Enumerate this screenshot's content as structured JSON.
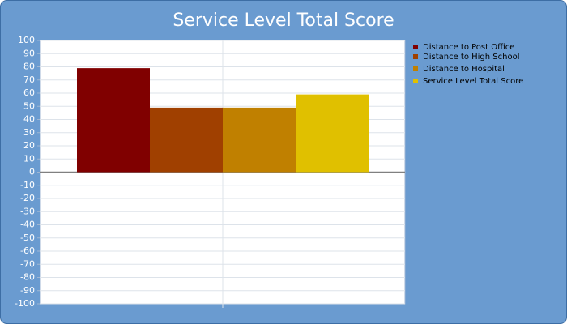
{
  "chart_data": {
    "type": "bar",
    "title": "Service Level Total Score",
    "series": [
      {
        "name": "Distance to Post Office",
        "color": "#800000",
        "values": [
          79
        ]
      },
      {
        "name": "Distance to High School",
        "color": "#a04000",
        "values": [
          49
        ]
      },
      {
        "name": "Distance to Hospital",
        "color": "#c08000",
        "values": [
          49
        ]
      },
      {
        "name": "Service Level Total Score",
        "color": "#e0c000",
        "values": [
          59
        ]
      }
    ],
    "ylim": [
      -100,
      100
    ],
    "yticks": [
      -100,
      -90,
      -80,
      -70,
      -60,
      -50,
      -40,
      -30,
      -20,
      -10,
      0,
      10,
      20,
      30,
      40,
      50,
      60,
      70,
      80,
      90,
      100
    ],
    "grid": true,
    "legend": "right"
  }
}
